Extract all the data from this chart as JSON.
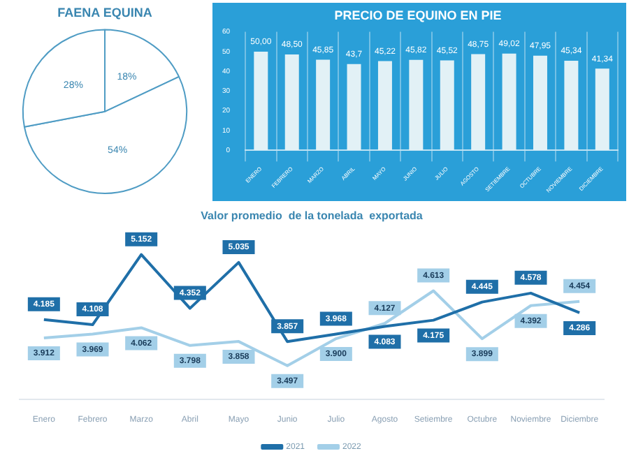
{
  "chart_data": [
    {
      "type": "pie",
      "title": "FAENA EQUINA",
      "categories": [
        null,
        null,
        null
      ],
      "values": [
        18,
        54,
        28
      ],
      "colors": [
        "#ffffff",
        "#ffffff",
        "#ffffff"
      ],
      "value_labels": [
        "18%",
        "54%",
        "28%"
      ],
      "legend": false
    },
    {
      "type": "bar",
      "title": "PRECIO DE EQUINO EN PIE",
      "categories": [
        "ENERO",
        "FEBRERO",
        "MARZO",
        "ABRIL",
        "MAYO",
        "JUNIO",
        "JULIO",
        "AGOSTO",
        "SETIEMBRE",
        "OCTUBRE",
        "NOVIEMBRE",
        "DICIEMBRE"
      ],
      "values": [
        50,
        48.5,
        45.85,
        43.7,
        45.22,
        45.82,
        45.52,
        48.75,
        49.02,
        47.95,
        45.34,
        41.34
      ],
      "value_labels": [
        "50,00",
        "48,50",
        "45,85",
        "43,7",
        "45,22",
        "45,82",
        "45,52",
        "48,75",
        "49,02",
        "47,95",
        "45,34",
        "41,34"
      ],
      "color": "#e2f1f6",
      "ylim": [
        0,
        60
      ],
      "yticks": [
        0,
        10,
        20,
        30,
        40,
        50,
        60
      ],
      "grid": "x",
      "legend": false
    },
    {
      "type": "line",
      "title": "Valor promedio  de la tonelada  exportada",
      "categories": [
        "Enero",
        "Febrero",
        "Marzo",
        "Abril",
        "Mayo",
        "Junio",
        "Julio",
        "Agosto",
        "Setiembre",
        "Octubre",
        "Noviembre",
        "Diciembre"
      ],
      "series": [
        {
          "name": "2021",
          "color": "#1f6fa8",
          "values": [
            4185,
            4108,
            5152,
            4352,
            5035,
            3857,
            3968,
            4083,
            4175,
            4445,
            4578,
            4286
          ],
          "value_labels": [
            "4.185",
            "4.108",
            "5.152",
            "4.352",
            "5.035",
            "3.857",
            "3.968",
            "4.083",
            "4.175",
            "4.445",
            "4.578",
            "4.286"
          ]
        },
        {
          "name": "2022",
          "color": "#a3cfe8",
          "values": [
            3912,
            3969,
            4062,
            3798,
            3858,
            3497,
            3900,
            4127,
            4613,
            3899,
            4392,
            4454
          ],
          "value_labels": [
            "3.912",
            "3.969",
            "4.062",
            "3.798",
            "3.858",
            "3.497",
            "3.900",
            "4.127",
            "4.613",
            "3.899",
            "4.392",
            "4.454"
          ]
        }
      ],
      "legend": "bottom",
      "tick_labels": "x",
      "marker": "none",
      "line_style": "solid",
      "grid": false
    }
  ]
}
